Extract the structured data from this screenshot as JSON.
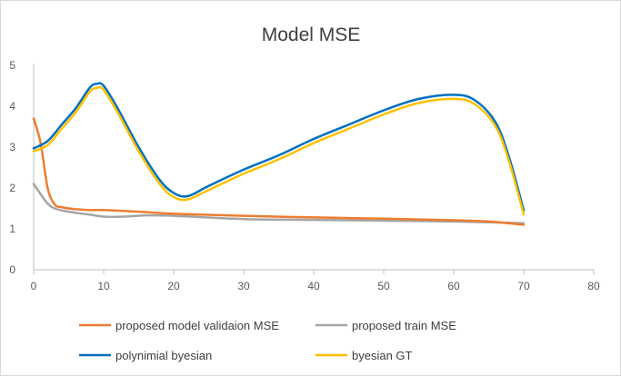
{
  "chart_data": {
    "type": "line",
    "title": "Model MSE",
    "xlim": [
      0,
      80
    ],
    "ylim": [
      0,
      5
    ],
    "x_ticks": [
      0,
      10,
      20,
      30,
      40,
      50,
      60,
      70,
      80
    ],
    "y_ticks": [
      0,
      1,
      2,
      3,
      4,
      5
    ],
    "grid": false,
    "legend_position": "bottom",
    "series": [
      {
        "name": "proposed model validaion MSE",
        "color": "#ED7D31",
        "points": [
          [
            0,
            3.7
          ],
          [
            1,
            3.1
          ],
          [
            2,
            2.0
          ],
          [
            3,
            1.6
          ],
          [
            4,
            1.53
          ],
          [
            6,
            1.48
          ],
          [
            8,
            1.46
          ],
          [
            10,
            1.46
          ],
          [
            15,
            1.42
          ],
          [
            20,
            1.37
          ],
          [
            30,
            1.32
          ],
          [
            40,
            1.28
          ],
          [
            50,
            1.25
          ],
          [
            60,
            1.21
          ],
          [
            65,
            1.18
          ],
          [
            70,
            1.1
          ]
        ]
      },
      {
        "name": "proposed train MSE",
        "color": "#A5A5A5",
        "points": [
          [
            0,
            2.1
          ],
          [
            1,
            1.85
          ],
          [
            2,
            1.62
          ],
          [
            3,
            1.5
          ],
          [
            5,
            1.42
          ],
          [
            8,
            1.35
          ],
          [
            10,
            1.3
          ],
          [
            13,
            1.3
          ],
          [
            16,
            1.33
          ],
          [
            20,
            1.32
          ],
          [
            30,
            1.24
          ],
          [
            40,
            1.22
          ],
          [
            50,
            1.2
          ],
          [
            60,
            1.18
          ],
          [
            65,
            1.16
          ],
          [
            70,
            1.14
          ]
        ]
      },
      {
        "name": "polynimial byesian",
        "color": "#0070C0",
        "points": [
          [
            0,
            2.97
          ],
          [
            2,
            3.15
          ],
          [
            4,
            3.55
          ],
          [
            6,
            3.95
          ],
          [
            8,
            4.45
          ],
          [
            9,
            4.55
          ],
          [
            10,
            4.5
          ],
          [
            12,
            3.95
          ],
          [
            15,
            3.0
          ],
          [
            18,
            2.2
          ],
          [
            20,
            1.88
          ],
          [
            22,
            1.8
          ],
          [
            25,
            2.05
          ],
          [
            30,
            2.45
          ],
          [
            35,
            2.8
          ],
          [
            40,
            3.2
          ],
          [
            45,
            3.55
          ],
          [
            50,
            3.9
          ],
          [
            55,
            4.18
          ],
          [
            60,
            4.28
          ],
          [
            63,
            4.15
          ],
          [
            66,
            3.6
          ],
          [
            68,
            2.7
          ],
          [
            70,
            1.45
          ]
        ]
      },
      {
        "name": "byesian GT",
        "color": "#FFC000",
        "points": [
          [
            0,
            2.9
          ],
          [
            2,
            3.05
          ],
          [
            4,
            3.45
          ],
          [
            6,
            3.85
          ],
          [
            8,
            4.35
          ],
          [
            9,
            4.45
          ],
          [
            10,
            4.4
          ],
          [
            12,
            3.85
          ],
          [
            15,
            2.9
          ],
          [
            18,
            2.1
          ],
          [
            20,
            1.78
          ],
          [
            22,
            1.72
          ],
          [
            25,
            1.95
          ],
          [
            30,
            2.35
          ],
          [
            35,
            2.7
          ],
          [
            40,
            3.1
          ],
          [
            45,
            3.45
          ],
          [
            50,
            3.8
          ],
          [
            55,
            4.08
          ],
          [
            60,
            4.18
          ],
          [
            63,
            4.05
          ],
          [
            66,
            3.5
          ],
          [
            68,
            2.6
          ],
          [
            70,
            1.35
          ]
        ]
      }
    ]
  }
}
